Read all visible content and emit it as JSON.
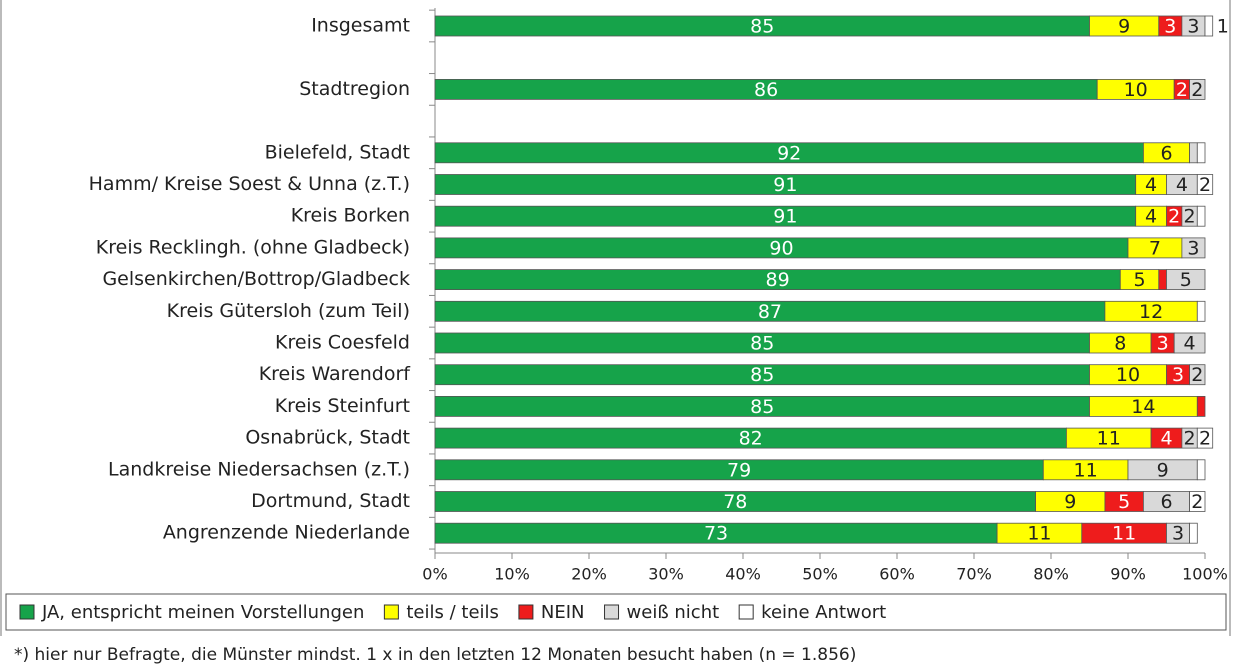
{
  "chart_data": {
    "type": "stacked-bar-horizontal",
    "categories": [
      "Insgesamt",
      null,
      "Stadtregion",
      null,
      "Bielefeld, Stadt",
      "Hamm/ Kreise Soest & Unna (z.T.)",
      "Kreis Borken",
      "Kreis Recklingh. (ohne Gladbeck)",
      "Gelsenkirchen/Bottrop/Gladbeck",
      "Kreis Gütersloh (zum Teil)",
      "Kreis Coesfeld",
      "Kreis Warendorf",
      "Kreis Steinfurt",
      "Osnabrück, Stadt",
      "Landkreise Niedersachsen (z.T.)",
      "Dortmund, Stadt",
      "Angrenzende Niederlande"
    ],
    "series": [
      {
        "name": "JA, entspricht meinen Vorstellungen",
        "color": "#16a34a",
        "values": [
          85,
          null,
          86,
          null,
          92,
          91,
          91,
          90,
          89,
          87,
          85,
          85,
          85,
          82,
          79,
          78,
          73
        ]
      },
      {
        "name": "teils / teils",
        "color": "#ffff00",
        "values": [
          9,
          null,
          10,
          null,
          6,
          4,
          4,
          7,
          5,
          12,
          8,
          10,
          14,
          11,
          11,
          9,
          11
        ]
      },
      {
        "name": "NEIN",
        "color": "#ee1c1c",
        "values": [
          3,
          null,
          2,
          null,
          0,
          0,
          2,
          0,
          1,
          0,
          3,
          3,
          1,
          4,
          0,
          5,
          11
        ],
        "value_labels": [
          "3",
          null,
          "2",
          null,
          null,
          null,
          "2",
          null,
          null,
          null,
          "3",
          "3",
          null,
          "4",
          null,
          "5",
          "11"
        ]
      },
      {
        "name": "weiß nicht",
        "color": "#d9d9d9",
        "values": [
          3,
          null,
          2,
          null,
          1,
          4,
          2,
          3,
          5,
          0,
          4,
          2,
          0,
          2,
          9,
          6,
          3
        ],
        "value_labels": [
          "3",
          null,
          "2",
          null,
          null,
          "4",
          "2",
          "3",
          "5",
          null,
          "4",
          "2",
          null,
          "2",
          "9",
          "6",
          "3"
        ]
      },
      {
        "name": "keine Antwort",
        "color": "#ffffff",
        "values": [
          1,
          null,
          0,
          null,
          1,
          2,
          1,
          0,
          0,
          1,
          0,
          0,
          0,
          2,
          1,
          2,
          1
        ],
        "value_labels": [
          "1",
          null,
          null,
          null,
          null,
          "2",
          null,
          null,
          null,
          null,
          null,
          null,
          null,
          "2",
          null,
          "2",
          null
        ]
      }
    ],
    "xlim": [
      0,
      100
    ],
    "xticks": [
      {
        "value": 0,
        "label": "0%"
      },
      {
        "value": 10,
        "label": "10%"
      },
      {
        "value": 20,
        "label": "20%"
      },
      {
        "value": 30,
        "label": "30%"
      },
      {
        "value": 40,
        "label": "40%"
      },
      {
        "value": 50,
        "label": "50%"
      },
      {
        "value": 60,
        "label": "60%"
      },
      {
        "value": 70,
        "label": "70%"
      },
      {
        "value": 80,
        "label": "80%"
      },
      {
        "value": 90,
        "label": "90%"
      },
      {
        "value": 100,
        "label": "100%"
      }
    ],
    "legend": "bottom",
    "footnote": "*) hier nur Befragte, die Münster mindst. 1 x in den letzten 12 Monaten besucht haben  (n = 1.856)"
  }
}
